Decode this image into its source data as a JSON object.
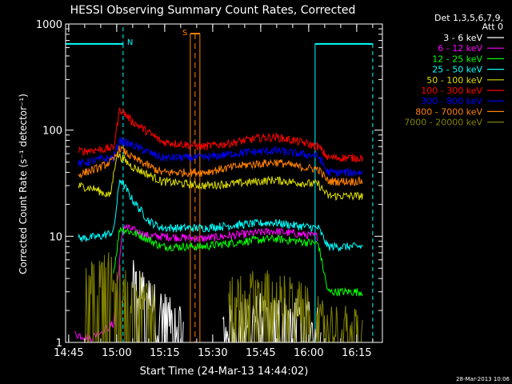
{
  "chart_data": {
    "type": "line",
    "title": "HESSI Observing Summary Count Rates, Corrected",
    "xlabel": "Start Time (24-Mar-13 14:44:02)",
    "ylabel": "Corrected Count Rate (s⁻¹ detector⁻¹)",
    "y_scale": "log",
    "ylim": [
      1,
      1000
    ],
    "xlim_minutes_after_14_44_02": [
      0,
      99
    ],
    "x_ticks": [
      "14:45",
      "15:00",
      "15:15",
      "15:30",
      "15:45",
      "16:00",
      "16:15"
    ],
    "y_ticks": [
      "1",
      "10",
      "100",
      "1000"
    ],
    "legend_header": [
      "Det 1,3,5,6,7,9,",
      "Att 0"
    ],
    "legend_position": "top-right",
    "timestamp": "28-Mar-2013 10:06",
    "markers": [
      {
        "label": "N",
        "kind": "night",
        "start": "14:44",
        "end": "15:02"
      },
      {
        "label": "S",
        "kind": "SAA",
        "start": "15:23",
        "end": "15:26"
      },
      {
        "label": "",
        "kind": "night",
        "start": "16:02",
        "end": "16:20"
      }
    ],
    "series": [
      {
        "name": "3 - 6 keV",
        "color": "#ffffff",
        "note": "1-5 level noise",
        "points": [
          [
            "15:05",
            4.5
          ],
          [
            "15:13",
            2.5
          ],
          [
            "15:21",
            1.5
          ],
          [
            "15:33",
            1.6
          ],
          [
            "15:45",
            2.2
          ],
          [
            "15:58",
            2.0
          ],
          [
            "16:04",
            1.5
          ]
        ]
      },
      {
        "name": "6 - 12 keV",
        "color": "#ff00ff",
        "points": [
          [
            "14:47",
            1.2
          ],
          [
            "14:52",
            1.1
          ],
          [
            "14:59",
            1.5
          ],
          [
            "15:02",
            12.5
          ],
          [
            "15:10",
            10.0
          ],
          [
            "15:14",
            10.0
          ],
          [
            "15:27",
            9.5
          ],
          [
            "15:40",
            10.5
          ],
          [
            "15:49",
            11.2
          ],
          [
            "15:57",
            10.5
          ],
          [
            "16:03",
            10.0
          ]
        ]
      },
      {
        "name": "12 - 25 keV",
        "color": "#00ff00",
        "points": [
          [
            "14:59",
            4.5
          ],
          [
            "15:01",
            12.0
          ],
          [
            "15:08",
            10.0
          ],
          [
            "15:14",
            8.0
          ],
          [
            "15:27",
            8.0
          ],
          [
            "15:40",
            9.0
          ],
          [
            "15:49",
            9.5
          ],
          [
            "15:57",
            9.0
          ],
          [
            "16:03",
            8.5
          ],
          [
            "16:06",
            3.0
          ],
          [
            "16:17",
            3.0
          ]
        ]
      },
      {
        "name": "25 - 50 keV",
        "color": "#00ffff",
        "points": [
          [
            "14:48",
            9.5
          ],
          [
            "14:55",
            10.0
          ],
          [
            "14:59",
            11.0
          ],
          [
            "15:01",
            35.0
          ],
          [
            "15:05",
            22.0
          ],
          [
            "15:10",
            14.0
          ],
          [
            "15:14",
            12.0
          ],
          [
            "15:27",
            12.0
          ],
          [
            "15:40",
            13.0
          ],
          [
            "15:49",
            13.5
          ],
          [
            "15:57",
            12.5
          ],
          [
            "16:03",
            12.0
          ],
          [
            "16:06",
            8.0
          ],
          [
            "16:17",
            8.0
          ]
        ]
      },
      {
        "name": "50 - 100 keV",
        "color": "#dddd00",
        "points": [
          [
            "14:48",
            30.0
          ],
          [
            "14:53",
            28.0
          ],
          [
            "14:58",
            24.0
          ],
          [
            "15:00",
            60.0
          ],
          [
            "15:05",
            45.0
          ],
          [
            "15:10",
            38.0
          ],
          [
            "15:14",
            33.0
          ],
          [
            "15:27",
            30.0
          ],
          [
            "15:40",
            32.0
          ],
          [
            "15:49",
            34.0
          ],
          [
            "15:57",
            32.0
          ],
          [
            "16:03",
            31.0
          ],
          [
            "16:06",
            24.0
          ],
          [
            "16:17",
            24.0
          ]
        ]
      },
      {
        "name": "100 - 300 keV",
        "color": "#ff0000",
        "points": [
          [
            "14:48",
            63.0
          ],
          [
            "14:55",
            66.0
          ],
          [
            "14:59",
            68.0
          ],
          [
            "15:01",
            160.0
          ],
          [
            "15:05",
            120.0
          ],
          [
            "15:10",
            95.0
          ],
          [
            "15:14",
            78.0
          ],
          [
            "15:27",
            70.0
          ],
          [
            "15:35",
            75.0
          ],
          [
            "15:45",
            85.0
          ],
          [
            "15:50",
            86.0
          ],
          [
            "15:57",
            78.0
          ],
          [
            "16:03",
            70.0
          ],
          [
            "16:06",
            55.0
          ],
          [
            "16:17",
            55.0
          ]
        ]
      },
      {
        "name": "300 - 800 keV",
        "color": "#0000ff",
        "points": [
          [
            "14:48",
            48.0
          ],
          [
            "14:55",
            53.0
          ],
          [
            "14:59",
            55.0
          ],
          [
            "15:01",
            80.0
          ],
          [
            "15:05",
            72.0
          ],
          [
            "15:10",
            62.0
          ],
          [
            "15:14",
            55.0
          ],
          [
            "15:27",
            55.0
          ],
          [
            "15:40",
            62.0
          ],
          [
            "15:50",
            64.0
          ],
          [
            "15:57",
            60.0
          ],
          [
            "16:03",
            57.0
          ],
          [
            "16:06",
            40.0
          ],
          [
            "16:17",
            40.0
          ]
        ]
      },
      {
        "name": "800 - 7000 keV",
        "color": "#ff8000",
        "points": [
          [
            "14:48",
            38.0
          ],
          [
            "14:55",
            45.0
          ],
          [
            "14:59",
            52.0
          ],
          [
            "15:01",
            68.0
          ],
          [
            "15:05",
            55.0
          ],
          [
            "15:10",
            46.0
          ],
          [
            "15:14",
            40.0
          ],
          [
            "15:27",
            40.0
          ],
          [
            "15:40",
            47.0
          ],
          [
            "15:50",
            50.0
          ],
          [
            "15:57",
            45.0
          ],
          [
            "16:03",
            43.0
          ],
          [
            "16:06",
            33.0
          ],
          [
            "16:17",
            33.0
          ]
        ]
      },
      {
        "name": "7000 - 20000 keV",
        "color": "#808000",
        "note": "1-6 level noise",
        "points": [
          [
            "14:50",
            4.2
          ],
          [
            "14:57",
            5.5
          ],
          [
            "15:03",
            4.0
          ],
          [
            "15:12",
            2.8
          ],
          [
            "15:35",
            3.0
          ],
          [
            "15:45",
            3.8
          ],
          [
            "15:56",
            3.0
          ],
          [
            "16:05",
            1.8
          ],
          [
            "16:17",
            1.6
          ]
        ]
      }
    ]
  }
}
